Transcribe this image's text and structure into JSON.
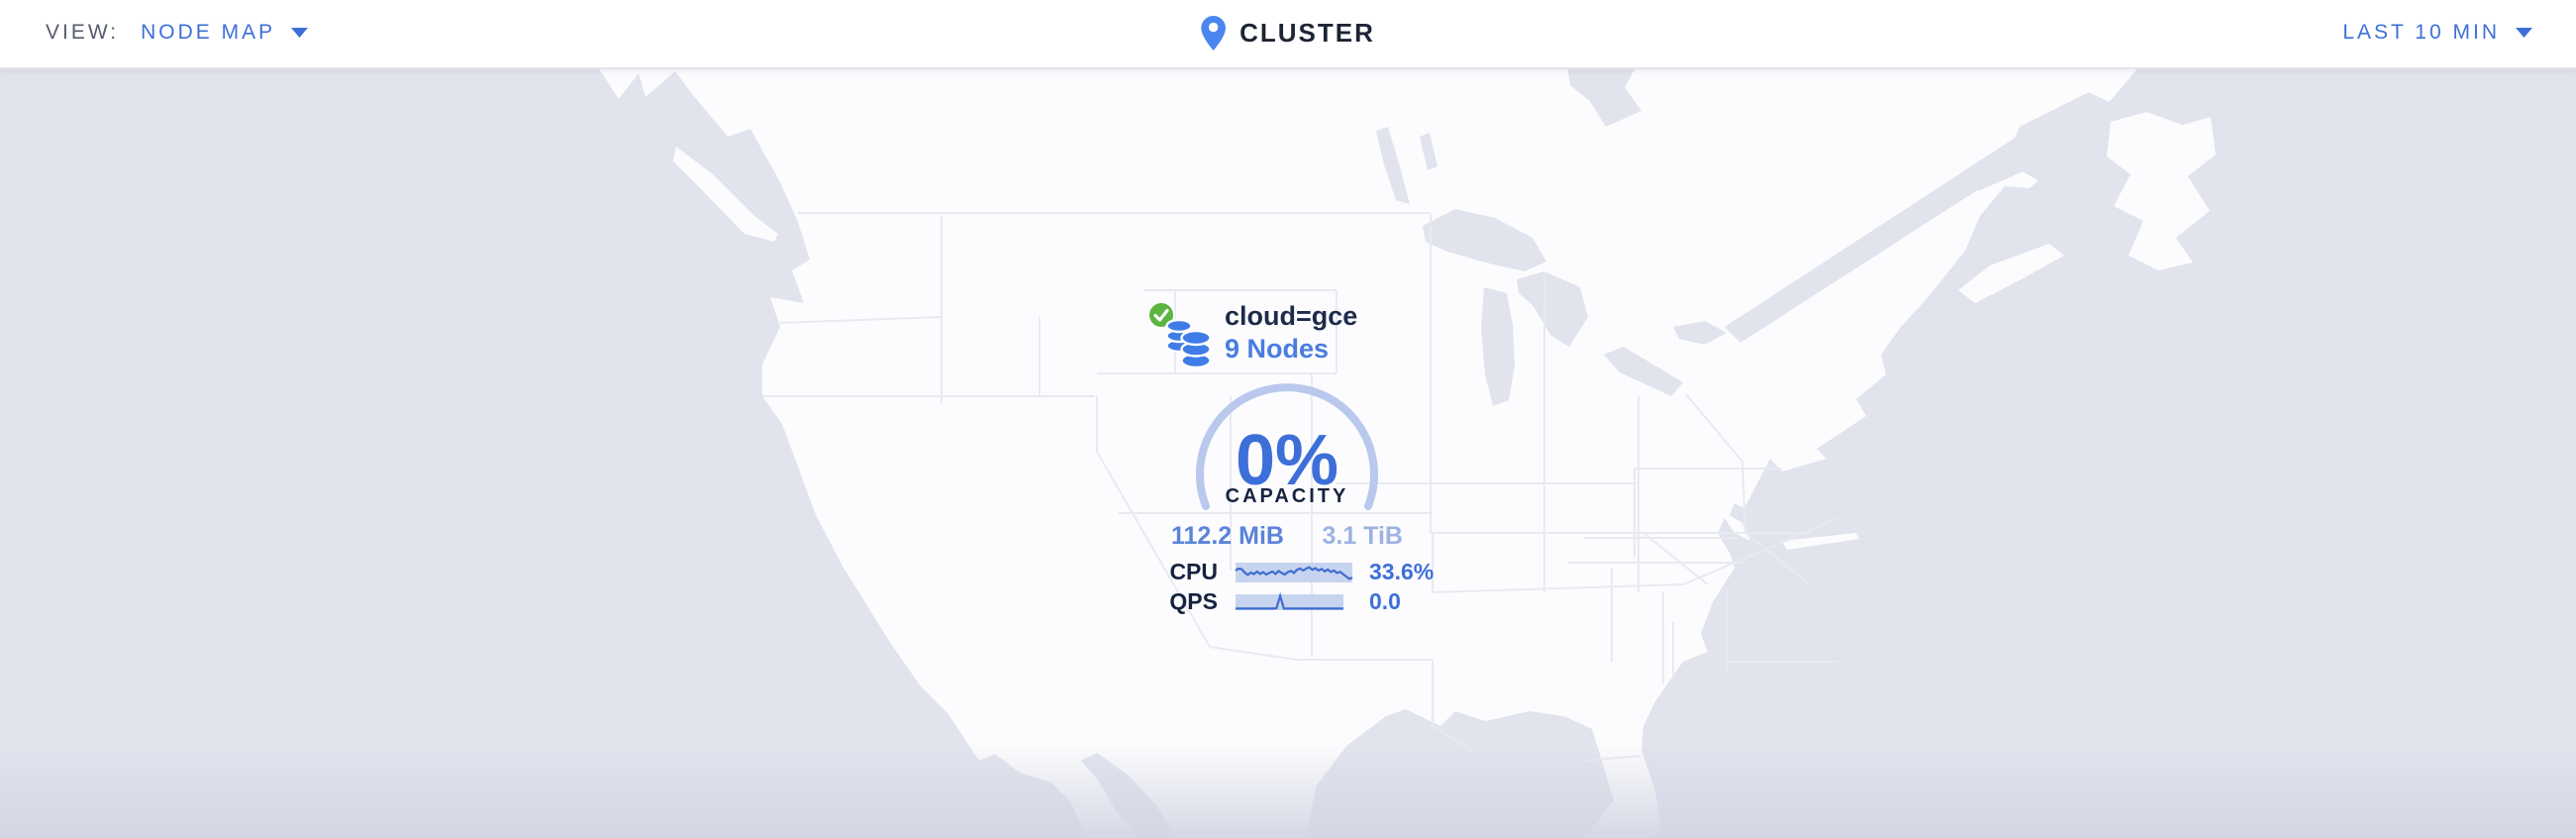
{
  "header": {
    "view_label": "VIEW:",
    "view_value": "NODE MAP",
    "breadcrumb": "CLUSTER",
    "time_range": "LAST 10 MIN"
  },
  "marker": {
    "locality": "cloud=gce",
    "node_count": "9 Nodes",
    "status": "healthy"
  },
  "gauge": {
    "percent": "0%",
    "label": "CAPACITY",
    "used": "112.2 MiB",
    "total": "3.1 TiB"
  },
  "metrics": {
    "rows": [
      {
        "label": "CPU",
        "value": "33.6%",
        "series": [
          0.4,
          0.3,
          0.33,
          0.5,
          0.62,
          0.5,
          0.58,
          0.45,
          0.57,
          0.48,
          0.6,
          0.52,
          0.45,
          0.57,
          0.42,
          0.52,
          0.6,
          0.48,
          0.42,
          0.52,
          0.36,
          0.3,
          0.4,
          0.3,
          0.24,
          0.36,
          0.28,
          0.4,
          0.32,
          0.44,
          0.35,
          0.47,
          0.4,
          0.52,
          0.46,
          0.58,
          0.7,
          0.82,
          0.76
        ]
      },
      {
        "label": "QPS",
        "value": "0.0",
        "series": [
          0.9,
          0.9,
          0.9,
          0.9,
          0.9,
          0.9,
          0.9,
          0.9,
          0.9,
          0.9,
          0.9,
          0.88,
          0.1,
          0.9,
          0.9,
          0.9,
          0.9,
          0.9,
          0.9,
          0.9,
          0.9,
          0.9,
          0.9,
          0.9,
          0.9,
          0.9,
          0.9,
          0.9,
          0.9,
          0.9
        ]
      }
    ]
  },
  "icons": {
    "view_caret": "caret-down",
    "time_caret": "caret-down",
    "breadcrumb_pin": "map-pin",
    "marker_status": "check-circle",
    "marker_nodes": "database-stack"
  },
  "colors": {
    "accent": "#3d6fd9",
    "accent_mid": "#5b83da",
    "accent_soft": "#9cb2e4",
    "navy": "#19233f",
    "gray_text": "#565b6e",
    "green": "#5cb441",
    "water": "#e1e3ed",
    "land": "#fcfcfe",
    "map_border": "#e8eaf1",
    "arc": "#b9c8ec",
    "spark_bg": "#c7d4f0",
    "spark_line": "#3f6cd0",
    "pin": "#4a86f0",
    "db": "#3f7ce8",
    "header_bg": "#ffffff",
    "header_border": "#e3e4e9"
  }
}
